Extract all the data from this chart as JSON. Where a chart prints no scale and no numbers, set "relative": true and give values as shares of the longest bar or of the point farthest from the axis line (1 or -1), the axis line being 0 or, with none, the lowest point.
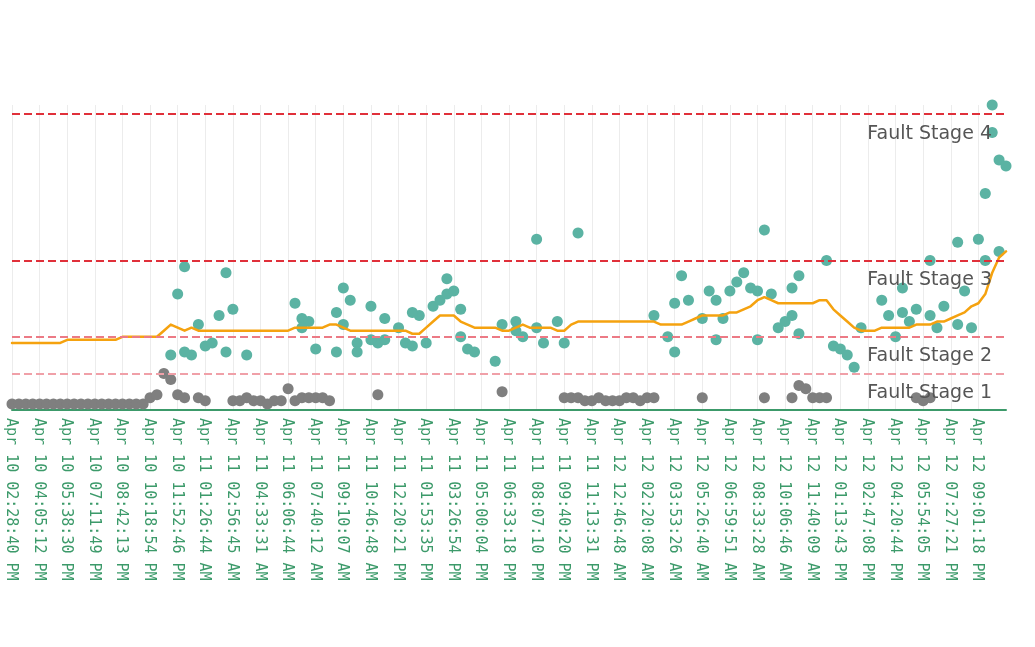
{
  "chart_data": {
    "type": "scatter",
    "relative": true,
    "grid": "x",
    "categories": [
      "Apr 10 02:28:40 PM",
      null,
      null,
      null,
      "Apr 10 04:05:12 PM",
      null,
      null,
      null,
      "Apr 10 05:38:30 PM",
      null,
      null,
      null,
      "Apr 10 07:11:49 PM",
      null,
      null,
      null,
      "Apr 10 08:42:13 PM",
      null,
      null,
      null,
      "Apr 10 10:18:54 PM",
      null,
      null,
      null,
      "Apr 10 11:52:46 PM",
      null,
      null,
      null,
      "Apr 11 01:26:44 AM",
      null,
      null,
      null,
      "Apr 11 02:56:45 AM",
      null,
      null,
      null,
      "Apr 11 04:33:31 AM",
      null,
      null,
      null,
      "Apr 11 06:06:44 AM",
      null,
      null,
      null,
      "Apr 11 07:40:12 AM",
      null,
      null,
      null,
      "Apr 11 09:10:07 AM",
      null,
      null,
      null,
      "Apr 11 10:46:48 AM",
      null,
      null,
      null,
      "Apr 11 12:20:21 PM",
      null,
      null,
      null,
      "Apr 11 01:53:35 PM",
      null,
      null,
      null,
      "Apr 11 03:26:54 PM",
      null,
      null,
      null,
      "Apr 11 05:00:04 PM",
      null,
      null,
      null,
      "Apr 11 06:33:18 PM",
      null,
      null,
      null,
      "Apr 11 08:07:10 PM",
      null,
      null,
      null,
      "Apr 11 09:40:20 PM",
      null,
      null,
      null,
      "Apr 11 11:13:31 PM",
      null,
      null,
      null,
      "Apr 12 12:46:48 AM",
      null,
      null,
      null,
      "Apr 12 02:20:08 AM",
      null,
      null,
      null,
      "Apr 12 03:53:26 AM",
      null,
      null,
      null,
      "Apr 12 05:26:40 AM",
      null,
      null,
      null,
      "Apr 12 06:59:51 AM",
      null,
      null,
      null,
      "Apr 12 08:33:28 AM",
      null,
      null,
      null,
      "Apr 12 10:06:46 AM",
      null,
      null,
      null,
      "Apr 12 11:40:09 AM",
      null,
      null,
      null,
      "Apr 12 01:13:43 PM",
      null,
      null,
      null,
      "Apr 12 02:47:08 PM",
      null,
      null,
      null,
      "Apr 12 04:20:44 PM",
      null,
      null,
      null,
      "Apr 12 05:54:05 PM",
      null,
      null,
      null,
      "Apr 12 07:27:21 PM",
      null,
      null,
      null,
      "Apr 12 09:01:18 PM",
      null,
      null,
      null,
      null
    ],
    "series": [
      {
        "marker": "circle",
        "color": "#7f7f7f",
        "values": [
          0.02,
          0.02,
          0.02,
          0.02,
          0.02,
          0.02,
          0.02,
          0.02,
          0.02,
          0.02,
          0.02,
          0.02,
          0.02,
          0.02,
          0.02,
          0.02,
          0.02,
          0.02,
          0.02,
          0.02,
          0.04,
          0.05,
          0.12,
          0.1,
          0.05,
          0.04,
          null,
          0.04,
          0.03,
          null,
          null,
          null,
          0.03,
          0.03,
          0.04,
          0.03,
          0.03,
          0.02,
          0.03,
          0.03,
          0.07,
          0.03,
          0.04,
          0.04,
          0.04,
          0.04,
          0.03,
          null,
          null,
          null,
          null,
          null,
          null,
          0.05,
          null,
          null,
          null,
          null,
          null,
          null,
          null,
          null,
          null,
          null,
          null,
          null,
          null,
          null,
          null,
          null,
          null,
          0.06,
          null,
          null,
          null,
          null,
          null,
          null,
          null,
          null,
          0.04,
          0.04,
          0.04,
          0.03,
          0.03,
          0.04,
          0.03,
          0.03,
          0.03,
          0.04,
          0.04,
          0.03,
          0.04,
          0.04,
          null,
          null,
          null,
          null,
          null,
          null,
          0.04,
          null,
          null,
          null,
          null,
          null,
          null,
          null,
          null,
          0.04,
          null,
          null,
          null,
          0.04,
          0.08,
          0.07,
          0.04,
          0.04,
          0.04,
          null,
          null,
          null,
          null,
          null,
          null,
          null,
          null,
          null,
          null,
          null,
          null,
          0.04,
          0.03,
          0.04,
          null,
          null,
          null,
          null,
          null,
          null,
          null,
          null,
          null,
          null,
          null
        ]
      },
      {
        "marker": "circle",
        "color": "#5bb3a3",
        "values": [
          null,
          null,
          null,
          null,
          null,
          null,
          null,
          null,
          null,
          null,
          null,
          null,
          null,
          null,
          null,
          null,
          null,
          null,
          null,
          null,
          null,
          null,
          null,
          0.18,
          0.38,
          0.47,
          0.18,
          0.28,
          0.21,
          0.22,
          0.31,
          0.45,
          0.33,
          null,
          0.18,
          null,
          null,
          null,
          null,
          null,
          null,
          0.35,
          0.3,
          0.29,
          0.2,
          null,
          null,
          0.19,
          0.4,
          0.36,
          0.22,
          null,
          0.34,
          0.22,
          0.3,
          null,
          0.27,
          0.22,
          0.21,
          0.31,
          0.22,
          0.34,
          0.36,
          0.38,
          0.39,
          0.33,
          0.2,
          0.19,
          null,
          null,
          0.16,
          0.28,
          null,
          0.29,
          0.24,
          null,
          0.56,
          0.22,
          null,
          0.29,
          0.22,
          null,
          0.58,
          null,
          null,
          null,
          null,
          null,
          null,
          null,
          null,
          null,
          null,
          0.31,
          null,
          0.24,
          0.19,
          0.44,
          0.36,
          null,
          0.3,
          0.39,
          0.36,
          0.3,
          0.39,
          0.42,
          0.45,
          0.4,
          0.39,
          0.59,
          0.38,
          0.27,
          0.29,
          0.31,
          0.44,
          null,
          null,
          null,
          0.49,
          0.21,
          0.2,
          0.18,
          0.14,
          0.27,
          null,
          null,
          0.36,
          0.31,
          0.24,
          0.4,
          0.29,
          0.33,
          null,
          0.49,
          0.27,
          0.34,
          null,
          0.55,
          0.39,
          0.27,
          0.56,
          0.71,
          1,
          0.82,
          0.8
        ]
      },
      {
        "marker": "circle",
        "color": "#5bb3a3",
        "values": [
          null,
          null,
          null,
          null,
          null,
          null,
          null,
          null,
          null,
          null,
          null,
          null,
          null,
          null,
          null,
          null,
          null,
          null,
          null,
          null,
          null,
          null,
          null,
          null,
          null,
          0.19,
          null,
          null,
          null,
          null,
          null,
          0.19,
          null,
          null,
          null,
          null,
          null,
          null,
          null,
          null,
          null,
          null,
          0.27,
          null,
          null,
          null,
          null,
          0.32,
          0.28,
          null,
          0.19,
          null,
          0.23,
          null,
          0.23,
          null,
          null,
          null,
          0.32,
          null,
          null,
          null,
          null,
          0.43,
          null,
          0.24,
          null,
          null,
          null,
          null,
          null,
          null,
          null,
          0.26,
          null,
          null,
          0.27,
          null,
          null,
          null,
          null,
          null,
          null,
          null,
          null,
          null,
          null,
          null,
          null,
          null,
          null,
          null,
          null,
          null,
          null,
          null,
          0.35,
          null,
          null,
          null,
          null,
          null,
          0.23,
          null,
          null,
          null,
          null,
          null,
          0.23,
          null,
          null,
          null,
          null,
          0.4,
          0.25,
          null,
          null,
          null,
          null,
          null,
          null,
          null,
          null,
          null,
          null,
          null,
          null,
          null,
          null,
          0.32,
          null,
          null,
          null,
          0.31,
          null,
          null,
          null,
          0.28,
          null,
          null,
          null,
          0.49,
          0.91,
          0.52,
          null
        ]
      },
      {
        "type": "line",
        "marker": "none",
        "line_style": "solid",
        "color": "#f5a20f",
        "values": [
          0.22,
          0.22,
          0.22,
          0.22,
          0.22,
          0.22,
          0.22,
          0.22,
          0.23,
          0.23,
          0.23,
          0.23,
          0.23,
          0.23,
          0.23,
          0.23,
          0.24,
          0.24,
          0.24,
          0.24,
          0.24,
          0.24,
          0.26,
          0.28,
          0.27,
          0.26,
          0.27,
          0.26,
          0.26,
          0.26,
          0.26,
          0.26,
          0.26,
          0.26,
          0.26,
          0.26,
          0.26,
          0.26,
          0.26,
          0.26,
          0.26,
          0.27,
          0.27,
          0.27,
          0.27,
          0.27,
          0.28,
          0.28,
          0.27,
          0.26,
          0.26,
          0.26,
          0.26,
          0.26,
          0.26,
          0.26,
          0.26,
          0.26,
          0.25,
          0.25,
          0.27,
          0.29,
          0.31,
          0.31,
          0.31,
          0.29,
          0.28,
          0.27,
          0.27,
          0.27,
          0.27,
          0.26,
          0.26,
          0.27,
          0.28,
          0.27,
          0.27,
          0.27,
          0.27,
          0.26,
          0.26,
          0.28,
          0.29,
          0.29,
          0.29,
          0.29,
          0.29,
          0.29,
          0.29,
          0.29,
          0.29,
          0.29,
          0.29,
          0.29,
          0.28,
          0.28,
          0.28,
          0.28,
          0.29,
          0.3,
          0.31,
          0.31,
          0.31,
          0.31,
          0.32,
          0.32,
          0.33,
          0.34,
          0.36,
          0.37,
          0.36,
          0.35,
          0.35,
          0.35,
          0.35,
          0.35,
          0.35,
          0.36,
          0.36,
          0.33,
          0.31,
          0.29,
          0.27,
          0.26,
          0.26,
          0.26,
          0.27,
          0.27,
          0.27,
          0.27,
          0.27,
          0.28,
          0.28,
          0.28,
          0.29,
          0.29,
          0.3,
          0.31,
          0.32,
          0.34,
          0.35,
          0.38,
          0.45,
          0.5,
          0.52
        ]
      }
    ],
    "ref_lines": [
      {
        "axis": "y",
        "value": 0.97,
        "label": "Fault Stage 4",
        "color": "#e0303a",
        "line_style": "dashed"
      },
      {
        "axis": "y",
        "value": 0.49,
        "label": "Fault Stage 3",
        "color": "#e0303a",
        "line_style": "dashed"
      },
      {
        "axis": "y",
        "value": 0.24,
        "label": "Fault Stage 2",
        "color": "#ec7a85",
        "line_style": "dashed"
      },
      {
        "axis": "y",
        "value": 0.12,
        "label": "Fault Stage 1",
        "color": "#f0a0a8",
        "line_style": "dashed"
      }
    ]
  }
}
